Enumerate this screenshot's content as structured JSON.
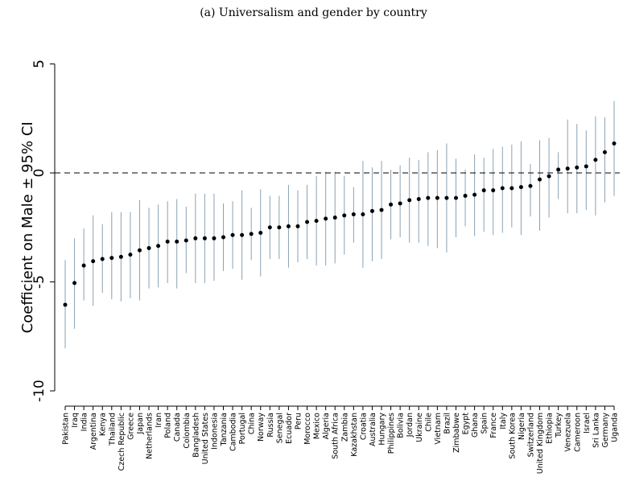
{
  "chart_data": {
    "type": "scatter",
    "title": "(a) Universalism and gender by country",
    "ylabel": "Coefficient on Male ± 95% CI",
    "xlabel": "",
    "ylim": [
      -10.5,
      5.5
    ],
    "yticks": [
      5,
      0,
      -5,
      -10
    ],
    "ytick_labels": [
      "5",
      "0",
      "-5",
      "-10"
    ],
    "reference_line": 0,
    "grid": false,
    "colors": {
      "point": "#000000",
      "ci": "#8aa1b3",
      "axis": "#000000"
    },
    "categories": [
      "Pakistan",
      "Iraq",
      "India",
      "Argentina",
      "Kenya",
      "Thailand",
      "Czech Republic",
      "Greece",
      "Japan",
      "Netherlands",
      "Iran",
      "Poland",
      "Canada",
      "Colombia",
      "Bangladesh",
      "United States",
      "Indonesia",
      "Tanzania",
      "Cambodia",
      "Portugal",
      "China",
      "Norway",
      "Russia",
      "Senegal",
      "Ecuador",
      "Peru",
      "Morocco",
      "Mexico",
      "Algeria",
      "South Africa",
      "Zambia",
      "Kazakhstan",
      "Croatia",
      "Australia",
      "Hungary",
      "Philippines",
      "Bolivia",
      "Jordan",
      "Ukraine",
      "Chile",
      "Vietnam",
      "Brazil",
      "Zimbabwe",
      "Egypt",
      "Ghana",
      "Spain",
      "France",
      "Italy",
      "South Korea",
      "Nigeria",
      "Switzerland",
      "United Kingdom",
      "Ethiopia",
      "Turkey",
      "Venezuela",
      "Cameroon",
      "Israel",
      "Sri Lanka",
      "Germany",
      "Uganda"
    ],
    "series": [
      {
        "estimate": [
          -6.05,
          -5.05,
          -4.25,
          -4.05,
          -3.95,
          -3.9,
          -3.85,
          -3.75,
          -3.55,
          -3.45,
          -3.35,
          -3.15,
          -3.15,
          -3.1,
          -3.0,
          -3.0,
          -3.0,
          -2.95,
          -2.85,
          -2.85,
          -2.8,
          -2.75,
          -2.5,
          -2.5,
          -2.45,
          -2.45,
          -2.25,
          -2.2,
          -2.1,
          -2.05,
          -1.95,
          -1.9,
          -1.9,
          -1.75,
          -1.7,
          -1.45,
          -1.4,
          -1.25,
          -1.2,
          -1.15,
          -1.15,
          -1.15,
          -1.15,
          -1.05,
          -1.0,
          -0.8,
          -0.8,
          -0.7,
          -0.7,
          -0.65,
          -0.6,
          -0.3,
          -0.15,
          0.15,
          0.2,
          0.25,
          0.3,
          0.6,
          0.95,
          1.35
        ],
        "ci_low": [
          -8.05,
          -7.15,
          -5.85,
          -6.1,
          -5.5,
          -5.8,
          -5.9,
          -5.75,
          -5.85,
          -5.3,
          -5.25,
          -5.05,
          -5.3,
          -4.6,
          -5.05,
          -5.05,
          -4.95,
          -4.5,
          -4.4,
          -4.9,
          -4.0,
          -4.75,
          -3.95,
          -3.95,
          -4.35,
          -4.1,
          -3.95,
          -4.25,
          -4.25,
          -4.15,
          -3.75,
          -3.2,
          -4.35,
          -4.05,
          -3.95,
          -3.05,
          -2.95,
          -3.2,
          -3.2,
          -3.35,
          -3.45,
          -3.65,
          -2.95,
          -2.45,
          -2.9,
          -2.7,
          -2.85,
          -2.75,
          -2.5,
          -2.85,
          -2.0,
          -2.65,
          -2.05,
          -1.2,
          -1.85,
          -1.85,
          -1.7,
          -1.95,
          -1.35,
          -1.05
        ],
        "ci_high": [
          -4.0,
          -3.0,
          -2.55,
          -1.95,
          -2.35,
          -1.8,
          -1.8,
          -1.8,
          -1.25,
          -1.6,
          -1.45,
          -1.3,
          -1.2,
          -1.55,
          -0.95,
          -0.95,
          -0.95,
          -1.4,
          -1.3,
          -0.8,
          -1.6,
          -0.75,
          -1.05,
          -1.05,
          -0.55,
          -0.8,
          -0.55,
          -0.15,
          0.05,
          0.05,
          -0.15,
          -0.65,
          0.55,
          0.25,
          0.55,
          0.15,
          0.35,
          0.7,
          0.6,
          0.95,
          1.05,
          1.35,
          0.65,
          0.15,
          0.85,
          0.7,
          1.1,
          1.2,
          1.3,
          1.45,
          0.4,
          1.5,
          1.6,
          0.95,
          2.45,
          2.25,
          1.95,
          2.6,
          2.55,
          3.3
        ]
      }
    ]
  }
}
